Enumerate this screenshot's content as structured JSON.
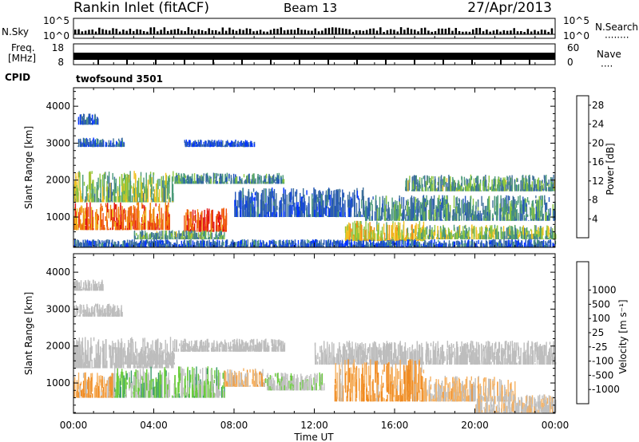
{
  "header": {
    "station": "Rankin Inlet (fitACF)",
    "beam": "Beam 13",
    "date": "27/Apr/2013"
  },
  "noise_panel": {
    "left_label": "N.Sky",
    "right_label": "N.Search",
    "right_legend": "········",
    "y_ticks": [
      "10^5",
      "10^0"
    ]
  },
  "freq_panel": {
    "left_label_line1": "Freq.",
    "left_label_line2": "[MHz]",
    "left_ticks": [
      "18",
      "8"
    ],
    "right_label": "Nave",
    "right_legend": "····",
    "right_ticks": [
      "60",
      "0"
    ]
  },
  "cpid": {
    "label": "CPID",
    "value": "twofsound 3501"
  },
  "colors": {
    "power_scale": [
      "#0033ff",
      "#2255bb",
      "#3d6e9a",
      "#4a9a78",
      "#8cc63f",
      "#f0c020",
      "#f08a10",
      "#f05010",
      "#e01010"
    ],
    "velocity_scale": [
      "#ee1111",
      "#f05510",
      "#f08a20",
      "#f5b060",
      "#c0c0c0",
      "#c0c0c0",
      "#6acc3c",
      "#3a9a6a",
      "#3366aa",
      "#1133bb"
    ],
    "ground_scatter": "#bdbdbd"
  },
  "chart_data": [
    {
      "type": "heatmap",
      "title": "",
      "xlabel": "Time UT",
      "ylabel": "Slant Range [km]",
      "x_tick_labels": [
        "00:00",
        "04:00",
        "08:00",
        "12:00",
        "16:00",
        "20:00",
        "00:00"
      ],
      "y_tick_labels": [
        "1000",
        "2000",
        "3000",
        "4000"
      ],
      "xlim": [
        0,
        24
      ],
      "ylim": [
        180,
        4500
      ],
      "colorbar_label": "Power [dB]",
      "colorbar_ticks": [
        "4",
        "8",
        "12",
        "16",
        "20",
        "24",
        "28"
      ],
      "colorbar_range": [
        0,
        30
      ],
      "regions": [
        {
          "t": [
            0.0,
            4.8
          ],
          "r": [
            650,
            1400
          ],
          "v": 24
        },
        {
          "t": [
            5.5,
            7.6
          ],
          "r": [
            600,
            1250
          ],
          "v": 26
        },
        {
          "t": [
            0.0,
            5.0
          ],
          "r": [
            1400,
            2250
          ],
          "v": 14
        },
        {
          "t": [
            5.0,
            10.5
          ],
          "r": [
            1900,
            2200
          ],
          "v": 10
        },
        {
          "t": [
            3.0,
            7.5
          ],
          "r": [
            400,
            650
          ],
          "v": 12
        },
        {
          "t": [
            8.0,
            14.5
          ],
          "r": [
            1000,
            1800
          ],
          "v": 6
        },
        {
          "t": [
            13.5,
            17.5
          ],
          "r": [
            350,
            900
          ],
          "v": 18
        },
        {
          "t": [
            17.0,
            24.0
          ],
          "r": [
            400,
            800
          ],
          "v": 14
        },
        {
          "t": [
            14.5,
            24.0
          ],
          "r": [
            900,
            1600
          ],
          "v": 10
        },
        {
          "t": [
            16.5,
            24.0
          ],
          "r": [
            1700,
            2150
          ],
          "v": 12
        },
        {
          "t": [
            0.2,
            2.5
          ],
          "r": [
            2900,
            3150
          ],
          "v": 6
        },
        {
          "t": [
            0.2,
            1.2
          ],
          "r": [
            3500,
            3800
          ],
          "v": 6
        },
        {
          "t": [
            5.5,
            9.0
          ],
          "r": [
            2900,
            3100
          ],
          "v": 4
        },
        {
          "t": [
            0.0,
            24.0
          ],
          "r": [
            180,
            400
          ],
          "v": 6
        }
      ]
    },
    {
      "type": "heatmap",
      "title": "",
      "xlabel": "Time UT",
      "ylabel": "Slant Range [km]",
      "x_tick_labels": [
        "00:00",
        "04:00",
        "08:00",
        "12:00",
        "16:00",
        "20:00",
        "00:00"
      ],
      "y_tick_labels": [
        "1000",
        "2000",
        "3000",
        "4000"
      ],
      "xlim": [
        0,
        24
      ],
      "ylim": [
        180,
        4500
      ],
      "colorbar_label": "Velocity [m s⁻¹]",
      "colorbar_ticks": [
        "-1000",
        "-500",
        "-100",
        "-25",
        "25",
        "100",
        "500",
        "1000"
      ],
      "colorbar_range": [
        -1200,
        1200
      ],
      "regions": [
        {
          "t": [
            0.0,
            5.0
          ],
          "r": [
            1400,
            2250
          ],
          "v": 0,
          "gs": true
        },
        {
          "t": [
            5.0,
            10.5
          ],
          "r": [
            1850,
            2200
          ],
          "v": 0,
          "gs": true
        },
        {
          "t": [
            12.0,
            24.0
          ],
          "r": [
            1500,
            2150
          ],
          "v": 0,
          "gs": true
        },
        {
          "t": [
            0.0,
            2.5
          ],
          "r": [
            2800,
            3150
          ],
          "v": 0,
          "gs": true
        },
        {
          "t": [
            0.0,
            1.5
          ],
          "r": [
            3500,
            3800
          ],
          "v": 0,
          "gs": true
        },
        {
          "t": [
            2.0,
            7.5
          ],
          "r": [
            600,
            1450
          ],
          "v": 300
        },
        {
          "t": [
            0.0,
            2.0
          ],
          "r": [
            600,
            1300
          ],
          "v": -400
        },
        {
          "t": [
            7.5,
            9.5
          ],
          "r": [
            900,
            1400
          ],
          "v": -300
        },
        {
          "t": [
            9.5,
            12.5
          ],
          "r": [
            800,
            1300
          ],
          "v": 80
        },
        {
          "t": [
            13.0,
            17.5
          ],
          "r": [
            500,
            1650
          ],
          "v": -450
        },
        {
          "t": [
            17.5,
            22.0
          ],
          "r": [
            500,
            1200
          ],
          "v": -250
        },
        {
          "t": [
            20.0,
            24.0
          ],
          "r": [
            200,
            700
          ],
          "v": -150
        },
        {
          "t": [
            2.5,
            5.0
          ],
          "r": [
            1500,
            1900
          ],
          "v": 0,
          "gs": true
        }
      ]
    }
  ]
}
